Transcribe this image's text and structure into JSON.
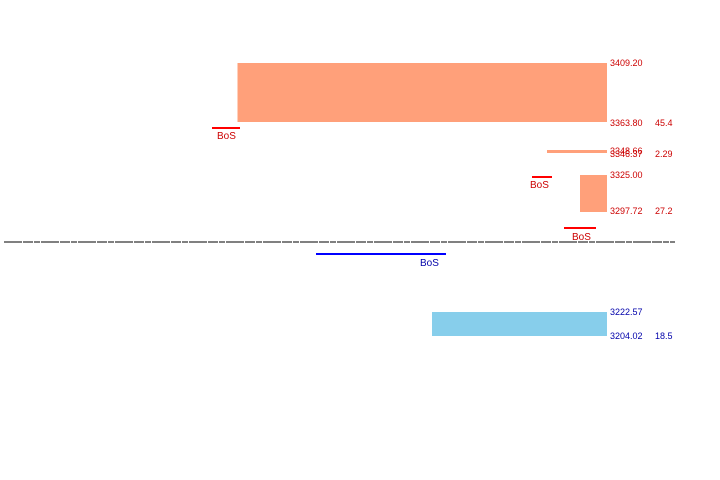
{
  "chart_data": {
    "type": "area",
    "title": "",
    "colors": {
      "supply": "#ffa07a",
      "demand": "#87ceeb",
      "bos_bear": "#ff0000",
      "bos_bull": "#0000ff",
      "label_red": "#cc0000",
      "label_blue": "#0000aa",
      "price_line": "#000000"
    },
    "zones": [
      {
        "kind": "supply",
        "top": "3409.20",
        "bottom": "3363.80",
        "size": "45.4"
      },
      {
        "kind": "supply",
        "top": "3348.66",
        "bottom": "3346.37",
        "size": "2.29"
      },
      {
        "kind": "supply",
        "top": "3325.00",
        "bottom": "3297.72",
        "size": "27.2"
      },
      {
        "kind": "demand",
        "top": "3222.57",
        "bottom": "3204.02",
        "size": "18.5"
      }
    ],
    "bos": [
      {
        "label": "BoS",
        "direction": "bearish"
      },
      {
        "label": "BoS",
        "direction": "bearish"
      },
      {
        "label": "BoS",
        "direction": "bearish"
      },
      {
        "label": "BoS",
        "direction": "bullish"
      }
    ]
  }
}
